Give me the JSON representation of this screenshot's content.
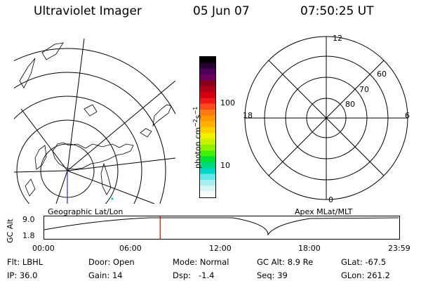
{
  "header": {
    "instrument": "Ultraviolet Imager",
    "date": "05 Jun 07",
    "time": "07:50:25 UT"
  },
  "left_panel": {
    "caption": "Geographic Lat/Lon"
  },
  "right_panel": {
    "caption": "Apex MLat/MLT",
    "mlt_labels": {
      "top": "12",
      "left": "18",
      "right": "6",
      "bottom": "0"
    },
    "lat_labels": [
      "60",
      "70",
      "80"
    ]
  },
  "colorbar": {
    "unit_label": "photon cm",
    "unit_sup1": "−2",
    "unit_mid": "s",
    "unit_sup2": "−1",
    "ticks": [
      "100",
      "10"
    ],
    "colors": [
      "#000000",
      "#2a0033",
      "#4b005e",
      "#6b0060",
      "#8a0020",
      "#b0001a",
      "#d40010",
      "#f01818",
      "#ff4a1e",
      "#ff7a10",
      "#ff9800",
      "#ffb000",
      "#ffd000",
      "#f5f000",
      "#c8f000",
      "#8cf000",
      "#40f000",
      "#00e030",
      "#00d880",
      "#00d8c8",
      "#60e8e8",
      "#a8f0f0",
      "#d8f8f8",
      "#f4fcfc"
    ]
  },
  "timeline": {
    "axis_label": "GC Alt",
    "y_max": "9.0",
    "y_min": "1.8",
    "ticks": [
      "00:00",
      "06:00",
      "12:00",
      "18:00",
      "23:59"
    ],
    "current_time_hours": 7.84
  },
  "status": {
    "flt": "Flt: LBHL",
    "ip": "IP: 36.0",
    "door": "Door: Open",
    "gain": "Gain: 14",
    "mode": "Mode: Normal",
    "dsp": "Dsp:   -1.4",
    "gc_alt": "GC Alt: 8.9 Re",
    "seq": "Seq: 39",
    "glat": "GLat: -67.5",
    "glon": "GLon: 261.2"
  }
}
